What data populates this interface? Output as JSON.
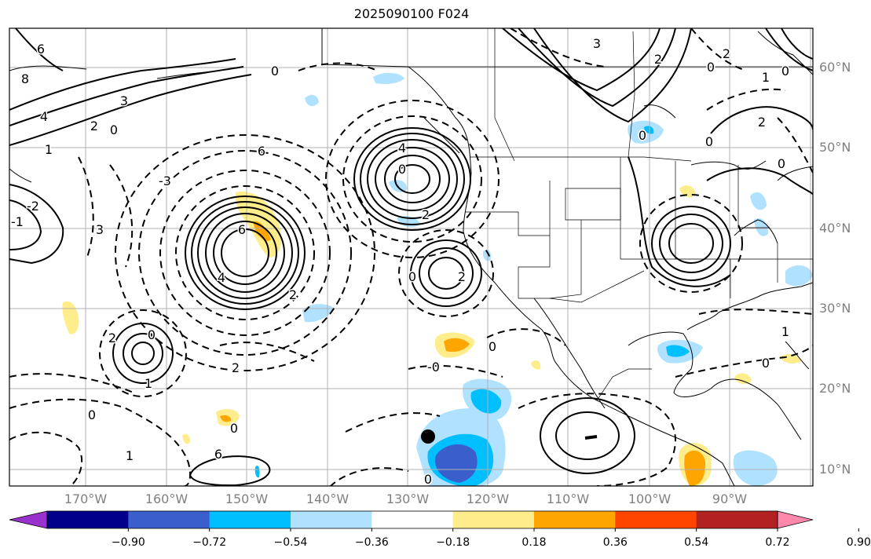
{
  "title": "2025090100 F024",
  "lat_labels": [
    "60°N",
    "50°N",
    "40°N",
    "30°N",
    "20°N",
    "10°N"
  ],
  "lon_labels": [
    "170°W",
    "160°W",
    "150°W",
    "140°W",
    "130°W",
    "120°W",
    "110°W",
    "100°W",
    "90°W"
  ],
  "colorbar": {
    "ticks": [
      "−0.90",
      "−0.72",
      "−0.54",
      "−0.36",
      "−0.18",
      "0.18",
      "0.36",
      "0.54",
      "0.72",
      "0.90"
    ],
    "colors": [
      "#9932cc",
      "#00008b",
      "#3a5fcd",
      "#00bfff",
      "#b0e2ff",
      "#ffffff",
      "#ffec8b",
      "#ffa500",
      "#ff4500",
      "#b22222",
      "#ff88aa"
    ]
  },
  "contour_labels": [
    "6",
    "8",
    "3",
    "4",
    "2",
    "0",
    "1",
    "-3",
    "-2",
    "-1",
    "3",
    "6",
    "4",
    "0",
    "6",
    "4",
    "2",
    "0",
    "2",
    "2",
    "2",
    "0",
    "1",
    "2",
    "0",
    "0",
    "6",
    "0",
    "3",
    "2",
    "0",
    "1",
    "0",
    "2",
    "2",
    "0",
    "0",
    "0",
    "-0",
    "0",
    "1",
    "0",
    "1",
    "0"
  ],
  "storm_marker": "black-dot"
}
